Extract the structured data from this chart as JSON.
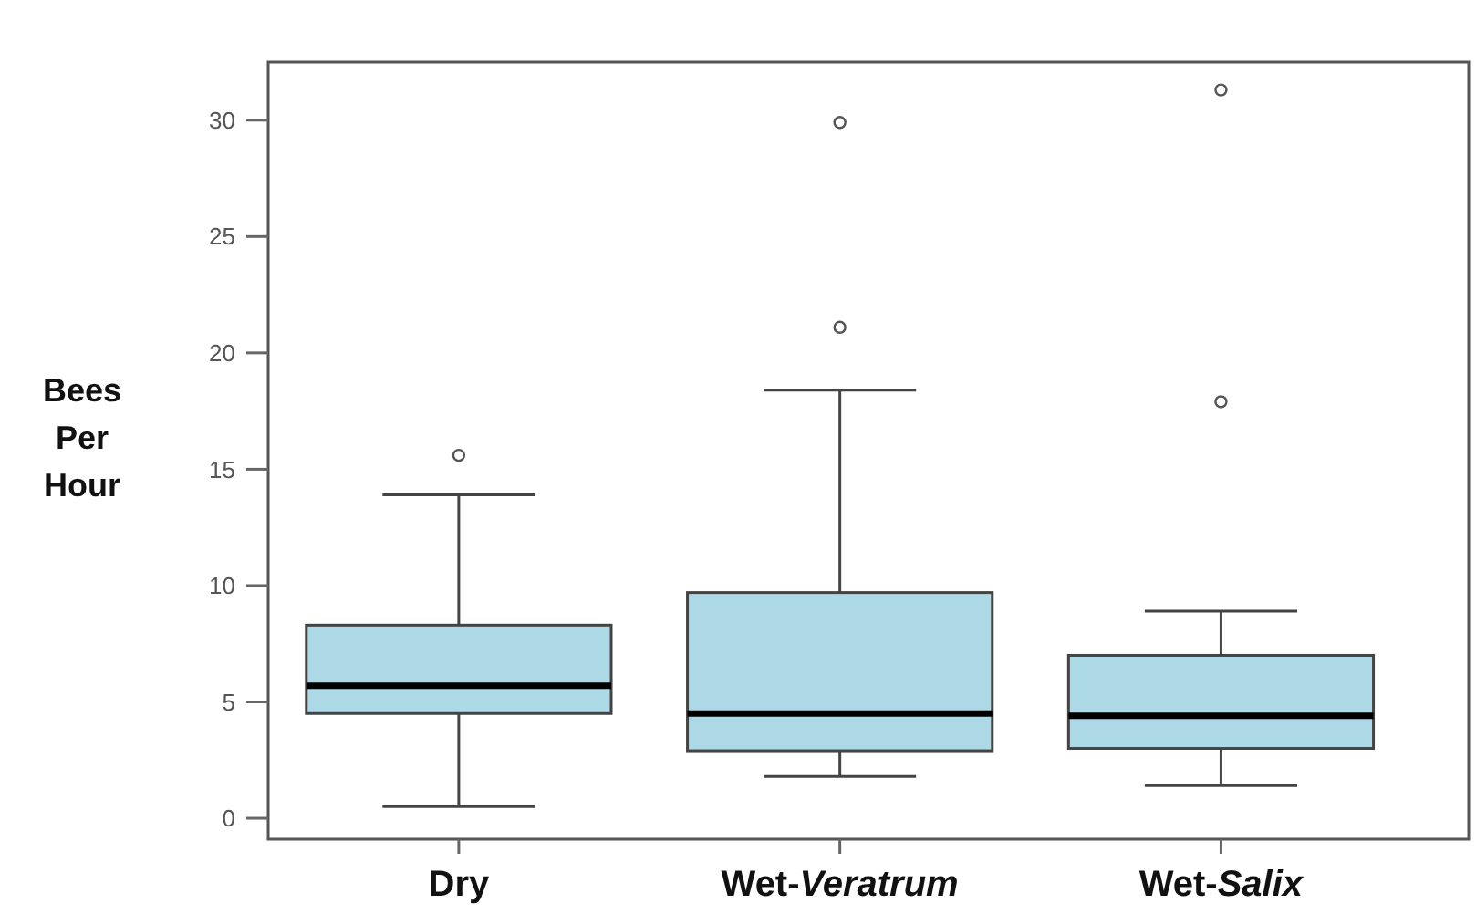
{
  "chart_data": {
    "type": "box",
    "ylabel": "Bees Per Hour",
    "categories": [
      "Dry",
      "Wet-Veratrum",
      "Wet-Salix"
    ],
    "color": "#add8e6",
    "boxes": [
      {
        "low": 0.5,
        "q1": 4.5,
        "median": 5.7,
        "q3": 8.3,
        "high": 13.9,
        "outliers": [
          15.6
        ]
      },
      {
        "low": 1.8,
        "q1": 2.9,
        "median": 4.5,
        "q3": 9.7,
        "high": 18.4,
        "outliers": [
          21.1,
          29.9
        ]
      },
      {
        "low": 1.4,
        "q1": 3.0,
        "median": 4.4,
        "q3": 7.0,
        "high": 8.9,
        "outliers": [
          17.9,
          31.3
        ]
      }
    ],
    "ylim": [
      -0.9,
      32.5
    ],
    "yticks": [
      0,
      5,
      10,
      15,
      20,
      25,
      30
    ]
  }
}
